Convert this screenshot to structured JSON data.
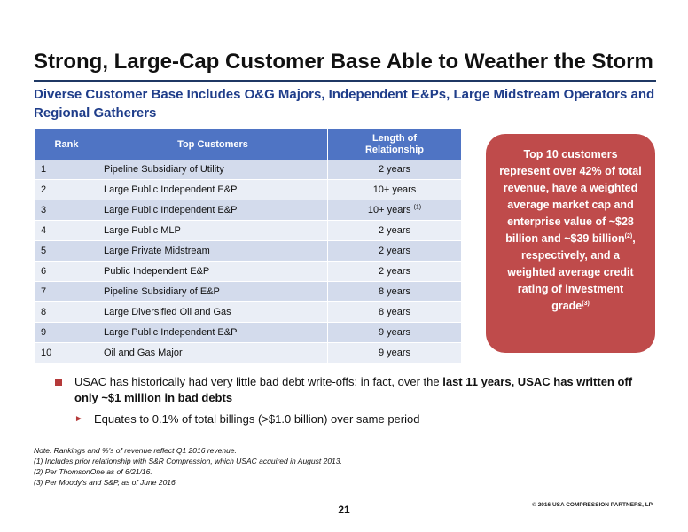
{
  "slide": {
    "title": "Strong, Large-Cap Customer Base Able to Weather the Storm",
    "subtitle": "Diverse Customer Base Includes O&G Majors, Independent E&Ps, Large Midstream Operators and Regional Gatherers"
  },
  "table": {
    "headers": {
      "rank": "Rank",
      "customers": "Top Customers",
      "length_line1": "Length of",
      "length_line2": "Relationship"
    },
    "rows": [
      {
        "rank": "1",
        "customer": "Pipeline Subsidiary of Utility",
        "length": "2 years"
      },
      {
        "rank": "2",
        "customer": "Large Public Independent E&P",
        "length": "10+ years"
      },
      {
        "rank": "3",
        "customer": "Large Public Independent E&P",
        "length": "10+ years",
        "footnote": "(1)"
      },
      {
        "rank": "4",
        "customer": "Large Public MLP",
        "length": "2 years"
      },
      {
        "rank": "5",
        "customer": "Large Private Midstream",
        "length": "2 years"
      },
      {
        "rank": "6",
        "customer": "Public Independent E&P",
        "length": "2 years"
      },
      {
        "rank": "7",
        "customer": "Pipeline Subsidiary of E&P",
        "length": "8 years"
      },
      {
        "rank": "8",
        "customer": "Large Diversified Oil and Gas",
        "length": "8 years"
      },
      {
        "rank": "9",
        "customer": "Large Public Independent E&P",
        "length": "9 years"
      },
      {
        "rank": "10",
        "customer": "Oil and Gas Major",
        "length": "9 years"
      }
    ]
  },
  "callout": {
    "part1": "Top 10 customers represent over 42% of total revenue, have a weighted average market cap and enterprise value of ~$28 billion and ~$39 billion",
    "sup1": "(2)",
    "part2": ", respectively, and a weighted average credit rating of investment grade",
    "sup2": "(3)"
  },
  "bullets": {
    "main_plain": "USAC has historically had very little bad debt write-offs; in fact, over the ",
    "main_bold": "last 11 years, USAC has written off only ~$1 million in bad debts",
    "sub": "Equates to 0.1% of total billings (>$1.0 billion) over same period"
  },
  "notes": [
    "Note: Rankings and %'s of revenue reflect Q1 2016 revenue.",
    "(1) Includes prior relationship with S&R Compression,  which USAC acquired in August 2013.",
    "(2) Per ThomsonOne as of 6/21/16.",
    "(3) Per Moody's and S&P, as of June 2016."
  ],
  "footer": {
    "copyright": "© 2016 USA COMPRESSION PARTNERS, LP",
    "page": "21"
  },
  "colors": {
    "header_blue": "#4f74c4",
    "subtitle_blue": "#1f3d8a",
    "callout_red": "#bf4b4b",
    "bullet_red": "#b53a3a"
  }
}
